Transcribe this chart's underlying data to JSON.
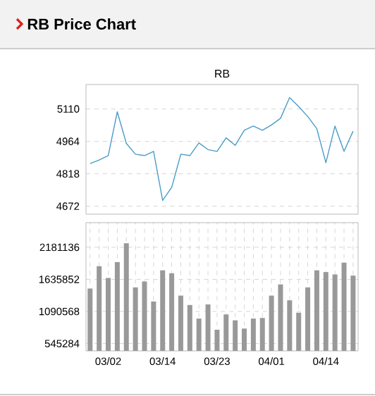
{
  "chart_data": [
    {
      "type": "line",
      "title": "RB Price Chart",
      "subtitle": "RB",
      "categories": [
        null,
        null,
        null,
        null,
        null,
        null,
        null,
        null,
        null,
        null,
        null,
        null,
        null,
        null,
        null,
        null,
        null,
        null,
        null,
        null,
        null,
        null,
        null,
        null,
        null,
        null,
        null,
        null,
        null,
        null
      ],
      "series": [
        {
          "color": "#4a9cc8",
          "values": [
            4864,
            4880,
            4900,
            5097,
            4955,
            4906,
            4900,
            4919,
            4698,
            4757,
            4906,
            4900,
            4957,
            4927,
            4919,
            4980,
            4946,
            5014,
            5033,
            5014,
            5038,
            5068,
            5161,
            5121,
            5076,
            5021,
            4868,
            5033,
            4919,
            5010
          ]
        }
      ],
      "ylim": [
        4636,
        5220
      ],
      "yticks": [
        4672,
        4818,
        4964,
        5110
      ],
      "grid": "y",
      "tick_labels": "y"
    },
    {
      "type": "bar",
      "categories": [
        null,
        null,
        "03/02",
        null,
        null,
        null,
        null,
        null,
        "03/14",
        null,
        null,
        null,
        null,
        null,
        "03/23",
        null,
        null,
        null,
        null,
        null,
        "04/01",
        null,
        null,
        null,
        null,
        null,
        "04/14",
        null,
        null,
        null
      ],
      "series": [
        {
          "color": "#999999",
          "values": [
            1480000,
            1860000,
            1660000,
            1930000,
            2250000,
            1500000,
            1600000,
            1260000,
            1790000,
            1740000,
            1360000,
            1200000,
            970000,
            1210000,
            780000,
            1040000,
            940000,
            800000,
            970000,
            980000,
            1360000,
            1550000,
            1280000,
            1070000,
            1500000,
            1790000,
            1760000,
            1720000,
            1920000,
            1700000
          ]
        }
      ],
      "ylim": [
        420000,
        2600000
      ],
      "yticks": [
        545284,
        1090568,
        1635852,
        2181136
      ],
      "grid": true
    }
  ]
}
